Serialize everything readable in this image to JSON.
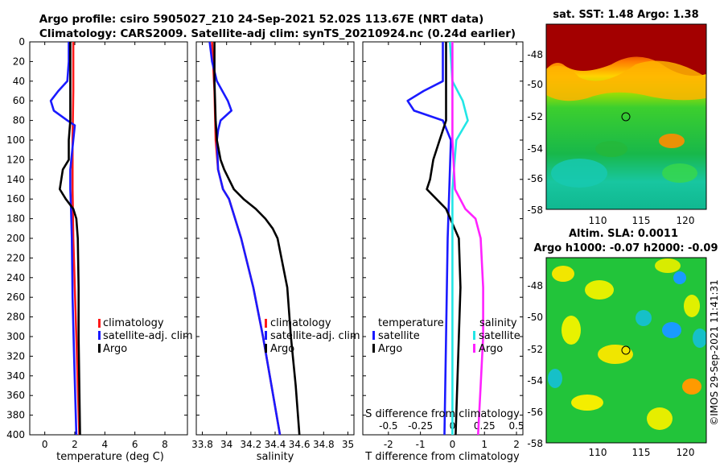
{
  "title": {
    "line1": "Argo profile: csiro 5905027_210 24-Sep-2021 52.02S 113.67E (NRT data)",
    "line2": "Climatology: CARS2009. Satellite-adj clim: synTS_20210924.nc (0.24d earlier)"
  },
  "colors": {
    "climatology": "#ff1a1a",
    "satellite": "#1a1aff",
    "argo": "#000000",
    "cyan": "#22e6e6",
    "magenta": "#ff22ff"
  },
  "chart_data": [
    {
      "type": "line",
      "id": "temperature",
      "xlabel": "temperature (deg C)",
      "ylabel": "",
      "xlim": [
        -1,
        9.5
      ],
      "ylim": [
        400,
        0
      ],
      "xticks": [
        0,
        2,
        4,
        6,
        8
      ],
      "xtick_labels": [
        "0",
        "2",
        "4",
        "6",
        "8"
      ],
      "yticks": [
        0,
        20,
        40,
        60,
        80,
        100,
        120,
        140,
        160,
        180,
        200,
        220,
        240,
        260,
        280,
        300,
        320,
        340,
        360,
        380,
        400
      ],
      "ytick_labels": [
        "0",
        "20",
        "40",
        "60",
        "80",
        "100",
        "120",
        "140",
        "160",
        "180",
        "200",
        "220",
        "240",
        "260",
        "280",
        "300",
        "320",
        "340",
        "360",
        "380",
        "400"
      ],
      "legend": [
        "climatology",
        "satellite-adj. clim",
        "Argo"
      ],
      "series": [
        {
          "name": "climatology",
          "color": "#ff1a1a",
          "depth": [
            0,
            50,
            100,
            150,
            200,
            250,
            300,
            350,
            400
          ],
          "values": [
            1.9,
            1.9,
            1.85,
            1.85,
            1.9,
            2.0,
            2.1,
            2.2,
            2.3
          ]
        },
        {
          "name": "satellite-adj. clim",
          "color": "#1a1aff",
          "depth": [
            0,
            20,
            40,
            50,
            60,
            70,
            80,
            85,
            100,
            130,
            150,
            170,
            200,
            260,
            320,
            400
          ],
          "values": [
            1.6,
            1.6,
            1.5,
            0.9,
            0.4,
            0.6,
            1.5,
            2.0,
            1.9,
            1.7,
            1.7,
            1.75,
            1.8,
            1.85,
            1.95,
            2.1
          ]
        },
        {
          "name": "Argo",
          "color": "#000000",
          "depth": [
            0,
            40,
            60,
            80,
            100,
            120,
            130,
            140,
            150,
            160,
            170,
            180,
            200,
            250,
            300,
            350,
            400
          ],
          "values": [
            1.7,
            1.7,
            1.7,
            1.7,
            1.6,
            1.6,
            1.2,
            1.1,
            1.0,
            1.4,
            1.9,
            2.1,
            2.2,
            2.25,
            2.25,
            2.3,
            2.35
          ]
        }
      ]
    },
    {
      "type": "line",
      "id": "salinity",
      "xlabel": "salinity",
      "ylabel": "",
      "xlim": [
        33.75,
        35.05
      ],
      "ylim": [
        400,
        0
      ],
      "xticks": [
        33.8,
        34,
        34.2,
        34.4,
        34.6,
        34.8,
        35
      ],
      "xtick_labels": [
        "33.8",
        "34",
        "34.2",
        "34.4",
        "34.6",
        "34.8",
        "35"
      ],
      "legend": [
        "climatology",
        "satellite-adj. clim",
        "Argo"
      ],
      "series": [
        {
          "name": "climatology",
          "color": "#ff1a1a",
          "depth": [
            0,
            50,
            100,
            130,
            150,
            160,
            200,
            250,
            300,
            350,
            400
          ],
          "values": [
            33.88,
            33.9,
            33.91,
            33.93,
            33.97,
            34.02,
            34.12,
            34.22,
            34.3,
            34.37,
            34.44
          ]
        },
        {
          "name": "satellite-adj. clim",
          "color": "#1a1aff",
          "depth": [
            0,
            20,
            40,
            60,
            70,
            80,
            90,
            100,
            130,
            150,
            160,
            200,
            250,
            300,
            350,
            400
          ],
          "values": [
            33.86,
            33.88,
            33.92,
            34.01,
            34.04,
            33.95,
            33.93,
            33.92,
            33.93,
            33.97,
            34.02,
            34.12,
            34.22,
            34.3,
            34.37,
            34.44
          ]
        },
        {
          "name": "Argo",
          "color": "#000000",
          "depth": [
            0,
            40,
            80,
            100,
            120,
            130,
            140,
            150,
            160,
            170,
            180,
            190,
            200,
            250,
            300,
            350,
            400
          ],
          "values": [
            33.9,
            33.9,
            33.91,
            33.92,
            33.95,
            33.98,
            34.02,
            34.06,
            34.14,
            34.24,
            34.32,
            34.38,
            34.42,
            34.5,
            34.53,
            34.57,
            34.6
          ]
        }
      ]
    },
    {
      "type": "line",
      "id": "difference",
      "xlabel": "T difference from climatology",
      "top_xlabel": "S difference from climatology",
      "ylabel": "",
      "xlim": [
        -2.8,
        2.2
      ],
      "ylim": [
        400,
        0
      ],
      "xticks": [
        -2,
        -1,
        0,
        1,
        2
      ],
      "xtick_labels": [
        "-2",
        "-1",
        "0",
        "1",
        "2"
      ],
      "top_xticks": [
        -0.5,
        -0.25,
        0,
        0.25,
        0.5
      ],
      "top_xtick_labels": [
        "-0.5",
        "-0.25",
        "0",
        "0.25",
        "0.5"
      ],
      "legend_title_left": "temperature",
      "legend_title_right": "salinity",
      "legend": [
        "satellite",
        "Argo",
        "satellite",
        "Argo"
      ],
      "series": [
        {
          "name": "T satellite",
          "color": "#1a1aff",
          "depth": [
            0,
            40,
            50,
            60,
            70,
            80,
            100,
            150,
            200,
            300,
            400
          ],
          "values": [
            -0.3,
            -0.3,
            -0.9,
            -1.4,
            -1.2,
            -0.3,
            -0.05,
            -0.1,
            -0.15,
            -0.2,
            -0.25
          ]
        },
        {
          "name": "T Argo",
          "color": "#000000",
          "depth": [
            0,
            40,
            80,
            100,
            120,
            140,
            150,
            170,
            200,
            250,
            300,
            350,
            400
          ],
          "values": [
            -0.2,
            -0.2,
            -0.2,
            -0.4,
            -0.6,
            -0.7,
            -0.8,
            -0.2,
            0.2,
            0.25,
            0.2,
            0.15,
            0.1
          ]
        },
        {
          "name": "S satellite",
          "color": "#22e6e6",
          "depth": [
            0,
            40,
            60,
            80,
            100,
            150,
            200,
            300,
            400
          ],
          "values": [
            -0.02,
            0.0,
            0.08,
            0.12,
            0.03,
            0.0,
            0.0,
            0.0,
            0.0
          ]
        },
        {
          "name": "S Argo",
          "color": "#ff22ff",
          "depth": [
            0,
            100,
            150,
            170,
            180,
            200,
            250,
            300,
            350,
            400
          ],
          "values": [
            0.0,
            0.0,
            0.02,
            0.1,
            0.18,
            0.22,
            0.24,
            0.24,
            0.22,
            0.2
          ]
        }
      ]
    }
  ],
  "sst_map": {
    "title": "sat. SST: 1.48 Argo: 1.38",
    "xticks": [
      "110",
      "115",
      "120"
    ],
    "yticks": [
      "-48",
      "-50",
      "-52",
      "-54",
      "-56",
      "-58"
    ]
  },
  "sla_map": {
    "title1": "Altim. SLA: 0.0011",
    "title2": "Argo h1000: -0.07 h2000: -0.09",
    "xticks": [
      "110",
      "115",
      "120"
    ],
    "yticks": [
      "-48",
      "-50",
      "-52",
      "-54",
      "-56",
      "-58"
    ]
  },
  "watermark": "©IMOS 29-Sep-2021 11:41:31"
}
